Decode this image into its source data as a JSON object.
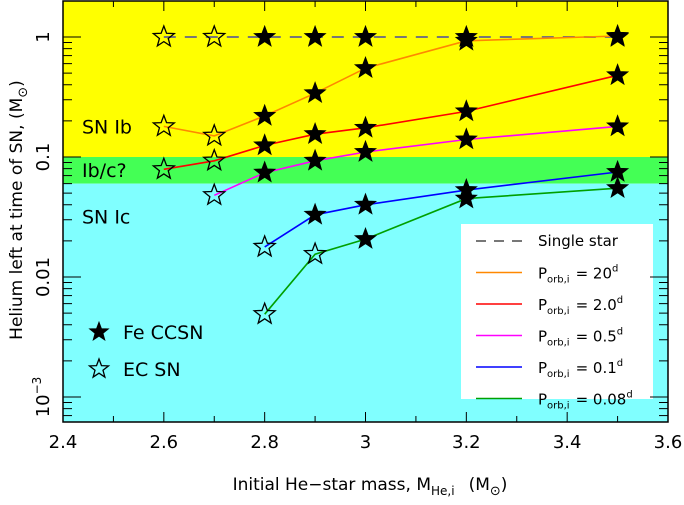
{
  "chart_data": {
    "type": "line",
    "title": "",
    "xlabel": "Initial He-star mass, M_He,i  (M_sun)",
    "xlabel_parts": {
      "main": "Initial He−star mass, M",
      "sub": "He,i",
      "unit": "(M",
      "unit_sub": "⊙",
      "unit_close": ")"
    },
    "ylabel": "Helium left at time of SN,  (M_sun)",
    "ylabel_parts": {
      "main": "Helium left at time of SN,  (M",
      "sub": "⊙",
      "close": ")"
    },
    "yscale": "log",
    "xlim": [
      2.4,
      3.6
    ],
    "ylim": [
      0.0006,
      2.0
    ],
    "x_ticks": [
      {
        "value": 2.4,
        "label": "2.4"
      },
      {
        "value": 2.6,
        "label": "2.6"
      },
      {
        "value": 2.8,
        "label": "2.8"
      },
      {
        "value": 3.0,
        "label": "3"
      },
      {
        "value": 3.2,
        "label": "3.2"
      },
      {
        "value": 3.4,
        "label": "3.4"
      },
      {
        "value": 3.6,
        "label": "3.6"
      }
    ],
    "y_ticks": [
      {
        "value": 1,
        "label": "1"
      },
      {
        "value": 0.1,
        "label": "0.1"
      },
      {
        "value": 0.01,
        "label": "0.01"
      },
      {
        "value": 0.001,
        "label": "10",
        "sup": "−3"
      }
    ],
    "regions": [
      {
        "name": "SN Ib",
        "label": "SN Ib",
        "ymin": 0.1,
        "ymax": 2.0,
        "color": "#ffff00",
        "label_y": 0.18
      },
      {
        "name": "Ib/c?",
        "label": "Ib/c?",
        "ymin": 0.06,
        "ymax": 0.1,
        "color": "#44ff55",
        "label_y": 0.078
      },
      {
        "name": "SN Ic",
        "label": "SN Ic",
        "ymin": 0.0006,
        "ymax": 0.06,
        "color": "#80ffff",
        "label_y": 0.032
      }
    ],
    "series": [
      {
        "name": "Single star",
        "legend": "Single star",
        "color": "#777777",
        "dashed": true,
        "x": [
          2.6,
          2.7,
          2.8,
          2.9,
          3.0,
          3.2,
          3.5
        ],
        "y": [
          1.0,
          1.0,
          1.0,
          1.0,
          1.0,
          1.0,
          1.0
        ],
        "markers": [
          "EC",
          "EC",
          "Fe",
          "Fe",
          "Fe",
          "Fe",
          "Fe"
        ]
      },
      {
        "name": "P_orb,i = 20d",
        "legend_value": "20",
        "color": "#ff8800",
        "dashed": false,
        "x": [
          2.6,
          2.7,
          2.8,
          2.9,
          3.0,
          3.2,
          3.5
        ],
        "y": [
          0.18,
          0.15,
          0.22,
          0.34,
          0.55,
          0.93,
          1.02
        ],
        "markers": [
          "EC",
          "EC",
          "Fe",
          "Fe",
          "Fe",
          "Fe",
          "Fe"
        ]
      },
      {
        "name": "P_orb,i = 2.0d",
        "legend_value": "2.0",
        "color": "#ff0000",
        "dashed": false,
        "x": [
          2.6,
          2.7,
          2.8,
          2.9,
          3.0,
          3.2,
          3.5
        ],
        "y": [
          0.079,
          0.093,
          0.125,
          0.155,
          0.175,
          0.24,
          0.48
        ],
        "markers": [
          "EC",
          "EC",
          "Fe",
          "Fe",
          "Fe",
          "Fe",
          "Fe"
        ]
      },
      {
        "name": "P_orb,i = 0.5d",
        "legend_value": "0.5",
        "color": "#ff00ff",
        "dashed": false,
        "x": [
          2.7,
          2.8,
          2.9,
          3.0,
          3.2,
          3.5
        ],
        "y": [
          0.048,
          0.074,
          0.093,
          0.11,
          0.14,
          0.18
        ],
        "markers": [
          "EC",
          "Fe",
          "Fe",
          "Fe",
          "Fe",
          "Fe"
        ]
      },
      {
        "name": "P_orb,i = 0.1d",
        "legend_value": "0.1",
        "color": "#0000ff",
        "dashed": false,
        "x": [
          2.8,
          2.9,
          3.0,
          3.2,
          3.5
        ],
        "y": [
          0.0178,
          0.033,
          0.04,
          0.053,
          0.075
        ],
        "markers": [
          "EC",
          "Fe",
          "Fe",
          "Fe",
          "Fe"
        ]
      },
      {
        "name": "P_orb,i = 0.08d",
        "legend_value": "0.08",
        "color": "#00a000",
        "dashed": false,
        "x": [
          2.8,
          2.9,
          3.0,
          3.2,
          3.5
        ],
        "y": [
          0.0049,
          0.0155,
          0.0207,
          0.045,
          0.055
        ],
        "markers": [
          "EC",
          "EC",
          "Fe",
          "Fe",
          "Fe"
        ]
      }
    ],
    "marker_legend": [
      {
        "type": "Fe",
        "label": "Fe CCSN"
      },
      {
        "type": "EC",
        "label": "EC SN"
      }
    ],
    "legend": {
      "position": "lower right",
      "porb_prefix": "P",
      "porb_sub": "orb,i",
      "equals": "=",
      "unit_sup": "d"
    },
    "grid": false
  }
}
